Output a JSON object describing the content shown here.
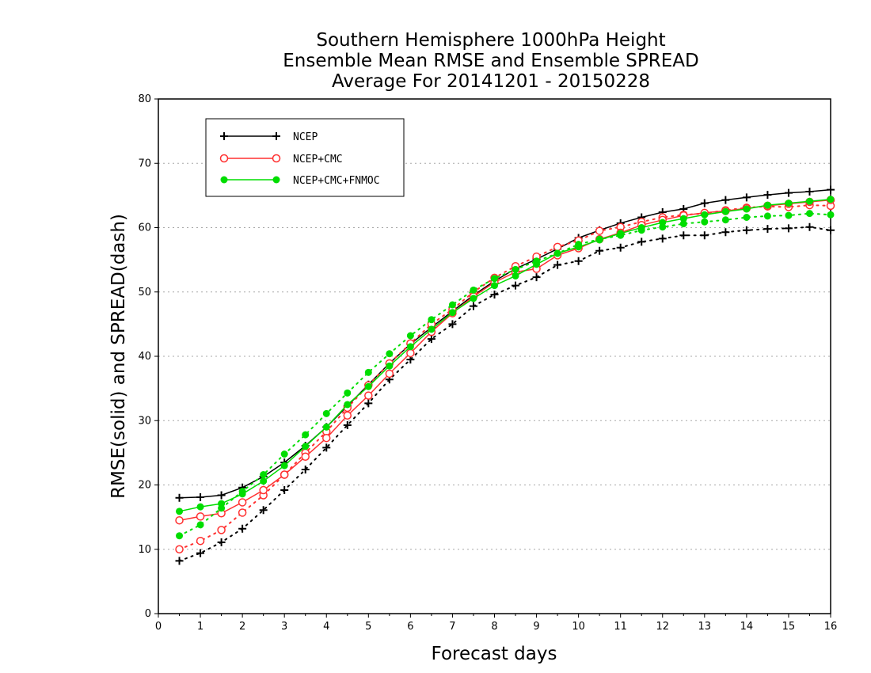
{
  "chart_data": {
    "type": "line",
    "title": [
      "Southern Hemisphere 1000hPa Height",
      "Ensemble Mean RMSE and Ensemble SPREAD",
      "Average For 20141201 - 20150228"
    ],
    "xlabel": "Forecast days",
    "ylabel": "RMSE(solid) and SPREAD(dash)",
    "xlim": [
      0,
      16
    ],
    "ylim": [
      0,
      80
    ],
    "xticks": [
      0,
      1,
      2,
      3,
      4,
      5,
      6,
      7,
      8,
      9,
      10,
      11,
      12,
      13,
      14,
      15,
      16
    ],
    "yticks": [
      0,
      10,
      20,
      30,
      40,
      50,
      60,
      70,
      80
    ],
    "grid": "horizontal dotted",
    "legend_position": "top-left",
    "x": [
      0.5,
      1,
      1.5,
      2,
      2.5,
      3,
      3.5,
      4,
      4.5,
      5,
      5.5,
      6,
      6.5,
      7,
      7.5,
      8,
      8.5,
      9,
      9.5,
      10,
      10.5,
      11,
      11.5,
      12,
      12.5,
      13,
      13.5,
      14,
      14.5,
      15,
      15.5,
      16
    ],
    "series": [
      {
        "name": "NCEP",
        "color": "#000000",
        "marker": "plus",
        "rmse": [
          18.0,
          18.1,
          18.4,
          19.6,
          21.3,
          23.5,
          26.1,
          29.0,
          32.3,
          35.6,
          38.9,
          41.9,
          44.5,
          47.0,
          49.5,
          51.7,
          53.6,
          55.1,
          56.7,
          58.4,
          59.6,
          60.7,
          61.6,
          62.4,
          62.9,
          63.8,
          64.3,
          64.7,
          65.1,
          65.4,
          65.6,
          65.9
        ],
        "spread": [
          8.2,
          9.4,
          11.1,
          13.2,
          16.1,
          19.2,
          22.4,
          25.8,
          29.3,
          32.7,
          36.4,
          39.5,
          42.7,
          45.0,
          47.8,
          49.6,
          51.0,
          52.3,
          54.2,
          54.8,
          56.4,
          56.9,
          57.8,
          58.3,
          58.8,
          58.8,
          59.3,
          59.6,
          59.8,
          59.9,
          60.1,
          59.6
        ]
      },
      {
        "name": "NCEP+CMC",
        "color": "#ff3030",
        "marker": "circle-open",
        "rmse": [
          14.5,
          15.1,
          15.6,
          17.3,
          19.2,
          21.6,
          24.4,
          27.3,
          30.8,
          33.9,
          37.3,
          40.5,
          43.8,
          46.7,
          49.3,
          51.5,
          53.1,
          53.6,
          55.7,
          56.8,
          58.2,
          59.2,
          60.4,
          61.2,
          61.9,
          62.3,
          62.6,
          63.0,
          63.4,
          63.7,
          64.0,
          64.3
        ],
        "spread": [
          10.0,
          11.3,
          13.0,
          15.7,
          18.4,
          21.6,
          25.0,
          28.3,
          32.0,
          35.5,
          38.9,
          42.0,
          45.0,
          47.3,
          50.0,
          52.2,
          54.0,
          55.5,
          57.0,
          58.0,
          59.5,
          60.1,
          60.9,
          61.6,
          62.0,
          62.2,
          62.7,
          63.1,
          63.3,
          63.2,
          63.5,
          63.4
        ]
      },
      {
        "name": "NCEP+CMC+FNMOC",
        "color": "#00dd00",
        "marker": "circle-filled",
        "rmse": [
          15.9,
          16.6,
          17.1,
          18.6,
          20.6,
          23.0,
          26.0,
          29.0,
          32.5,
          35.3,
          38.5,
          41.5,
          44.2,
          46.8,
          49.0,
          51.0,
          52.5,
          54.3,
          56.0,
          57.0,
          58.1,
          59.1,
          60.0,
          60.8,
          61.4,
          62.0,
          62.5,
          62.9,
          63.5,
          63.8,
          64.1,
          64.4
        ],
        "spread": [
          12.1,
          13.8,
          16.4,
          19.0,
          21.6,
          24.8,
          27.8,
          31.1,
          34.3,
          37.5,
          40.4,
          43.2,
          45.7,
          48.0,
          50.3,
          52.1,
          53.5,
          54.8,
          56.0,
          57.4,
          58.2,
          58.8,
          59.6,
          60.1,
          60.6,
          60.9,
          61.2,
          61.6,
          61.8,
          61.9,
          62.2,
          62.0
        ]
      }
    ]
  }
}
